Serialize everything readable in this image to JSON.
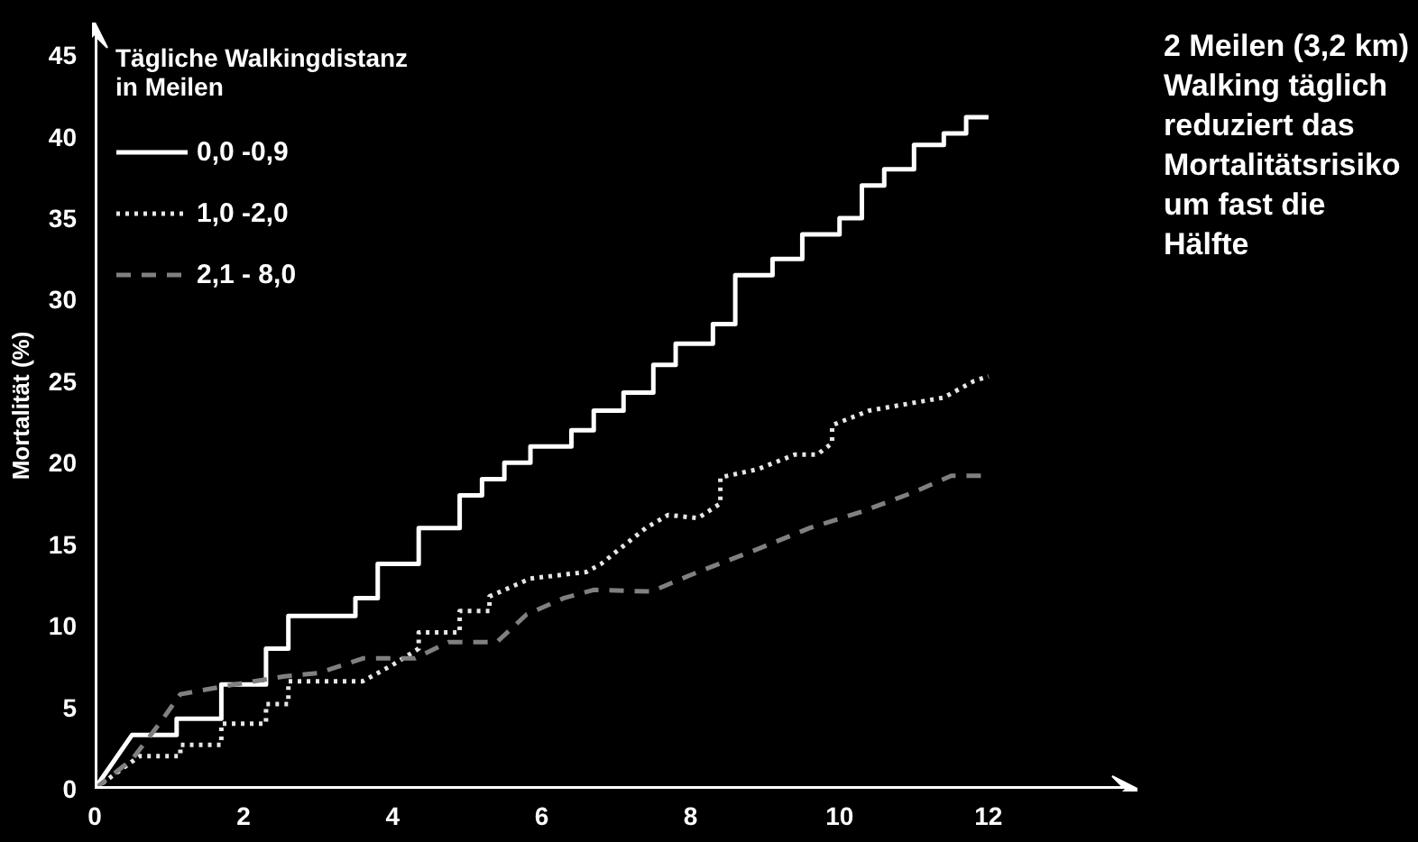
{
  "chart_data": {
    "type": "line",
    "ylabel": "Mortalität (%)",
    "legend_title": "Tägliche Walkingdistanz in Meilen",
    "annotations": [
      "2 Meilen (3,2 km) Walking täglich reduziert das Mortalitätsrisiko um fast die Hälfte"
    ],
    "xlim": [
      0,
      14
    ],
    "ylim": [
      0,
      47
    ],
    "xticks": [
      0,
      2,
      4,
      6,
      8,
      10,
      12
    ],
    "yticks": [
      0,
      5,
      10,
      15,
      20,
      25,
      30,
      35,
      40,
      45
    ],
    "grid": false,
    "legend": "top left",
    "marker": "none",
    "series": [
      {
        "name": "0,0 -0,9",
        "color": "#ffffff",
        "line_style": "solid",
        "x": [
          0,
          0.5,
          1.1,
          1.1,
          1.7,
          1.7,
          2.3,
          2.3,
          2.6,
          2.6,
          3.5,
          3.5,
          3.8,
          3.8,
          4.35,
          4.35,
          4.9,
          4.9,
          5.2,
          5.2,
          5.5,
          5.5,
          5.85,
          5.85,
          6.4,
          6.4,
          6.7,
          6.7,
          7.1,
          7.1,
          7.5,
          7.5,
          7.8,
          7.8,
          8.3,
          8.3,
          8.6,
          8.6,
          9.1,
          9.1,
          9.5,
          9.5,
          10,
          10,
          10.3,
          10.3,
          10.6,
          10.6,
          11,
          11,
          11.4,
          11.4,
          11.7,
          11.7,
          12
        ],
        "values": [
          0,
          3.3,
          3.3,
          4.3,
          4.3,
          6.4,
          6.4,
          8.6,
          8.6,
          10.6,
          10.6,
          11.7,
          11.7,
          13.8,
          13.8,
          16,
          16,
          18,
          18,
          19,
          19,
          20,
          20,
          21,
          21,
          22,
          22,
          23.2,
          23.2,
          24.3,
          24.3,
          26,
          26,
          27.3,
          27.3,
          28.5,
          28.5,
          31.5,
          31.5,
          32.5,
          32.5,
          34,
          34,
          35,
          35,
          37,
          37,
          38,
          38,
          39.5,
          39.5,
          40.2,
          40.2,
          41.2,
          41.2
        ]
      },
      {
        "name": "1,0 -2,0",
        "color": "#e6e6e6",
        "line_style": "dotted",
        "x": [
          0,
          0.6,
          1.15,
          1.15,
          1.7,
          1.7,
          2.3,
          2.3,
          2.6,
          2.6,
          3.6,
          4.0,
          4.35,
          4.35,
          4.9,
          4.9,
          5.3,
          5.3,
          5.85,
          6.6,
          6.8,
          7.1,
          7.4,
          7.7,
          8.1,
          8.4,
          8.4,
          8.9,
          9.4,
          9.7,
          9.9,
          9.9,
          10.4,
          11.4,
          11.8,
          12
        ],
        "values": [
          0,
          2,
          2,
          2.7,
          2.7,
          4,
          4,
          5.2,
          5.2,
          6.6,
          6.6,
          7.6,
          8.6,
          9.6,
          9.6,
          10.9,
          10.9,
          11.8,
          12.9,
          13.3,
          13.8,
          14.9,
          16,
          16.8,
          16.6,
          17.5,
          19.1,
          19.6,
          20.5,
          20.5,
          21.2,
          22.3,
          23.2,
          24,
          25,
          25.3
        ]
      },
      {
        "name": "2,1 - 8,0",
        "color": "#808080",
        "line_style": "dashed",
        "x": [
          0,
          0.5,
          0.87,
          1.15,
          1.75,
          2.55,
          3.0,
          3.6,
          4.3,
          4.75,
          5.4,
          5.8,
          6.3,
          6.7,
          7.47,
          8.1,
          8.9,
          9.6,
          10.3,
          11.0,
          11.5,
          11.9
        ],
        "values": [
          0,
          1.8,
          4,
          5.8,
          6.3,
          6.9,
          7.1,
          8,
          8,
          9,
          9,
          10.7,
          11.7,
          12.2,
          12.1,
          13.3,
          14.7,
          16,
          17,
          18.2,
          19.2,
          19.2
        ]
      }
    ]
  }
}
